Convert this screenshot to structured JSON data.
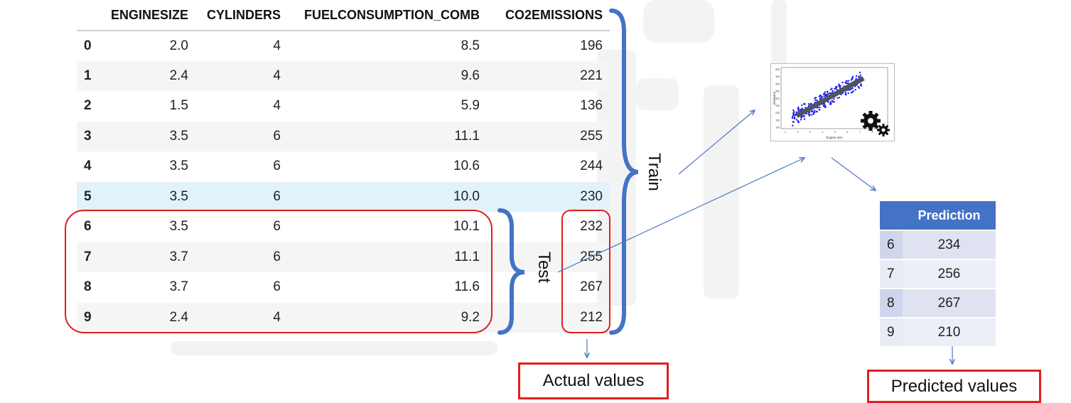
{
  "table": {
    "columns": [
      "",
      "ENGINESIZE",
      "CYLINDERS",
      "FUELCONSUMPTION_COMB",
      "CO2EMISSIONS"
    ],
    "rows": [
      {
        "idx": "0",
        "enginesize": "2.0",
        "cylinders": "4",
        "fuel": "8.5",
        "co2": "196"
      },
      {
        "idx": "1",
        "enginesize": "2.4",
        "cylinders": "4",
        "fuel": "9.6",
        "co2": "221"
      },
      {
        "idx": "2",
        "enginesize": "1.5",
        "cylinders": "4",
        "fuel": "5.9",
        "co2": "136"
      },
      {
        "idx": "3",
        "enginesize": "3.5",
        "cylinders": "6",
        "fuel": "11.1",
        "co2": "255"
      },
      {
        "idx": "4",
        "enginesize": "3.5",
        "cylinders": "6",
        "fuel": "10.6",
        "co2": "244"
      },
      {
        "idx": "5",
        "enginesize": "3.5",
        "cylinders": "6",
        "fuel": "10.0",
        "co2": "230"
      },
      {
        "idx": "6",
        "enginesize": "3.5",
        "cylinders": "6",
        "fuel": "10.1",
        "co2": "232"
      },
      {
        "idx": "7",
        "enginesize": "3.7",
        "cylinders": "6",
        "fuel": "11.1",
        "co2": "255"
      },
      {
        "idx": "8",
        "enginesize": "3.7",
        "cylinders": "6",
        "fuel": "11.6",
        "co2": "267"
      },
      {
        "idx": "9",
        "enginesize": "2.4",
        "cylinders": "4",
        "fuel": "9.2",
        "co2": "212"
      }
    ]
  },
  "labels": {
    "train": "Train",
    "test": "Test",
    "actual": "Actual values",
    "predicted": "Predicted values"
  },
  "prediction_table": {
    "header": "Prediction",
    "rows": [
      {
        "idx": "6",
        "value": "234"
      },
      {
        "idx": "7",
        "value": "256"
      },
      {
        "idx": "8",
        "value": "267"
      },
      {
        "idx": "9",
        "value": "210"
      }
    ]
  },
  "plot_icon": {
    "type": "scatter",
    "xlabel": "Engine size",
    "ylabel": "Emission",
    "xticks": [
      "1",
      "2",
      "3",
      "4",
      "5",
      "6",
      "7",
      "8"
    ],
    "yticks": [
      "500",
      "450",
      "400",
      "350",
      "300",
      "250",
      "200",
      "150",
      "100"
    ],
    "icon": "gears-icon"
  },
  "colors": {
    "brace": "#4472c4",
    "highlight_box": "#e02020",
    "arrow": "#4a78c2",
    "header_fill": "#4472c4",
    "points": "#1a1aee"
  }
}
